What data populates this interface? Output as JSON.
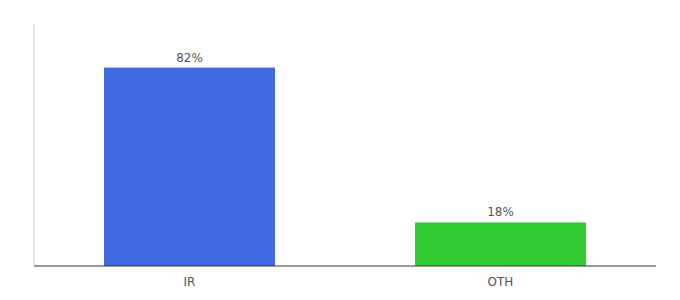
{
  "chart_data": {
    "type": "bar",
    "categories": [
      "IR",
      "OTH"
    ],
    "values": [
      82,
      18
    ],
    "value_labels": [
      "82%",
      "18%"
    ],
    "colors": [
      "#4169e1",
      "#33cc33"
    ],
    "ylim": [
      0,
      100
    ],
    "data_labels": true,
    "tick_labels": "x",
    "grid": false
  }
}
